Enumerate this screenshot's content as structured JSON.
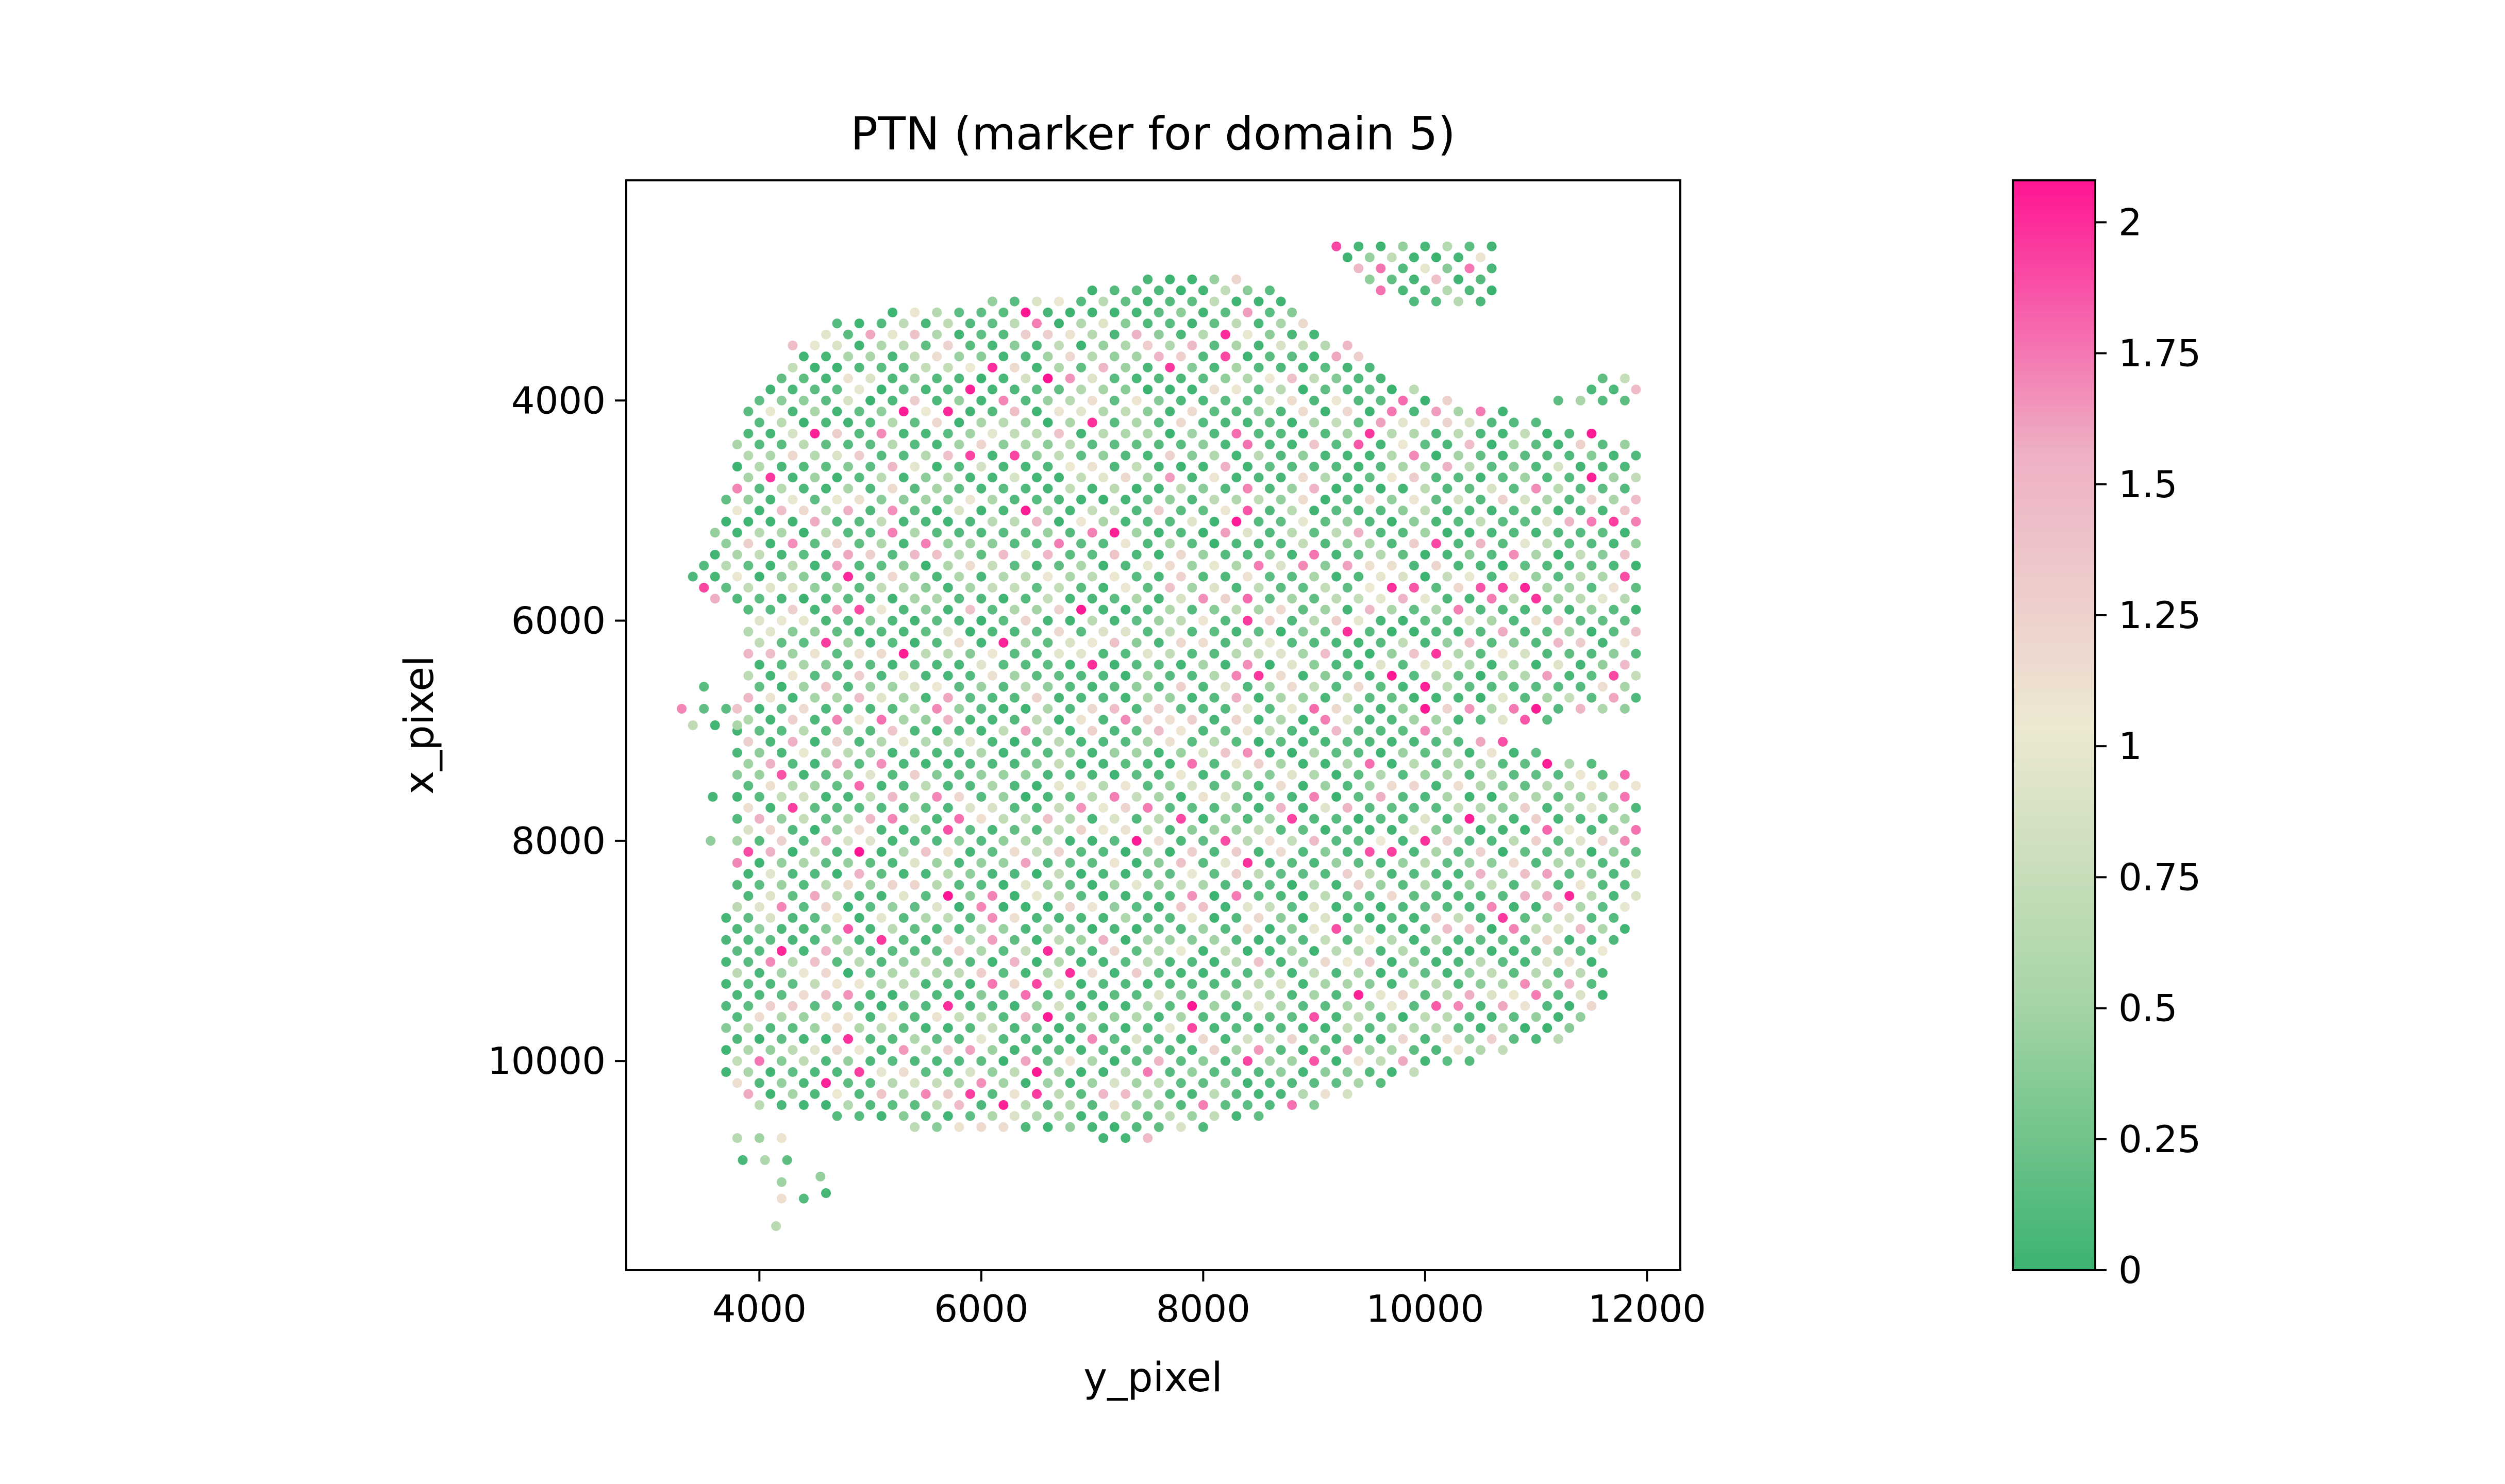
{
  "chart_data": {
    "type": "scatter",
    "title": "PTN (marker for domain 5)",
    "xlabel": "y_pixel",
    "ylabel": "x_pixel",
    "xlim": [
      2800,
      12300
    ],
    "ylim": [
      11900,
      2000
    ],
    "y_inverted": true,
    "x_ticks": [
      4000,
      6000,
      8000,
      10000,
      12000
    ],
    "x_tick_labels": [
      "4000",
      "6000",
      "8000",
      "10000",
      "12000"
    ],
    "y_ticks": [
      4000,
      6000,
      8000,
      10000
    ],
    "y_tick_labels": [
      "4000",
      "6000",
      "8000",
      "10000"
    ],
    "grid": false,
    "point_description": "Visium spots on a hexagonal lattice (~2000 spots) colored by PTN expression; values 0-2.1, mostly low (green) with scattered high (pink) spots",
    "tissue_shape": {
      "main_rows": [
        [
          2900,
          7400,
          8300
        ],
        [
          3000,
          7000,
          8700
        ],
        [
          3250,
          4600,
          9000
        ],
        [
          3500,
          4300,
          9300
        ],
        [
          3800,
          4200,
          9700
        ],
        [
          4100,
          3900,
          10700
        ],
        [
          4400,
          3800,
          11900
        ],
        [
          4800,
          3700,
          11900
        ],
        [
          5200,
          3600,
          11900
        ],
        [
          5600,
          3300,
          11900
        ],
        [
          6000,
          3850,
          11900
        ],
        [
          6400,
          3850,
          11900
        ],
        [
          6800,
          3800,
          11900
        ],
        [
          7000,
          3750,
          10300
        ],
        [
          7400,
          3750,
          11900
        ],
        [
          8000,
          3750,
          11900
        ],
        [
          8600,
          3700,
          11900
        ],
        [
          9000,
          3700,
          11700
        ],
        [
          9400,
          3650,
          11600
        ],
        [
          9800,
          3650,
          11300
        ],
        [
          10100,
          3700,
          10000
        ],
        [
          10400,
          4000,
          9000
        ],
        [
          10600,
          5400,
          8000
        ],
        [
          10700,
          7100,
          7600
        ]
      ],
      "upper_right_patch": [
        [
          2600,
          9200,
          10600
        ],
        [
          2800,
          9400,
          10600
        ],
        [
          3000,
          9600,
          10600
        ],
        [
          3100,
          9900,
          10600
        ]
      ],
      "right_top_extension": [
        [
          3800,
          11600,
          11900
        ],
        [
          4000,
          11200,
          11900
        ]
      ],
      "left_outliers": [
        [
          6600,
          3500,
          3650
        ],
        [
          6800,
          3300,
          3700
        ],
        [
          6950,
          3400,
          3800
        ],
        [
          7600,
          3580,
          3620
        ],
        [
          8000,
          3560,
          3600
        ]
      ],
      "bottom_outliers": [
        [
          10700,
          3800,
          4200
        ],
        [
          10900,
          3850,
          4300
        ],
        [
          11100,
          4200,
          4300
        ],
        [
          11250,
          4200,
          4400
        ],
        [
          11500,
          4150,
          4250
        ],
        [
          11050,
          4550,
          4650
        ],
        [
          11200,
          4600,
          4700
        ]
      ]
    },
    "colorbar": {
      "label": "",
      "min": 0,
      "max": 2.08,
      "ticks": [
        0,
        0.25,
        0.5,
        0.75,
        1,
        1.25,
        1.5,
        1.75,
        2
      ],
      "tick_labels": [
        "0",
        "0.25",
        "0.5",
        "0.75",
        "1",
        "1.25",
        "1.5",
        "1.75",
        "2"
      ],
      "colors": [
        "#3cb371",
        "#a8d5a8",
        "#ede8d2",
        "#eeb0c4",
        "#ff1493"
      ],
      "color_stops": [
        0,
        0.25,
        0.5,
        0.75,
        1
      ]
    }
  }
}
